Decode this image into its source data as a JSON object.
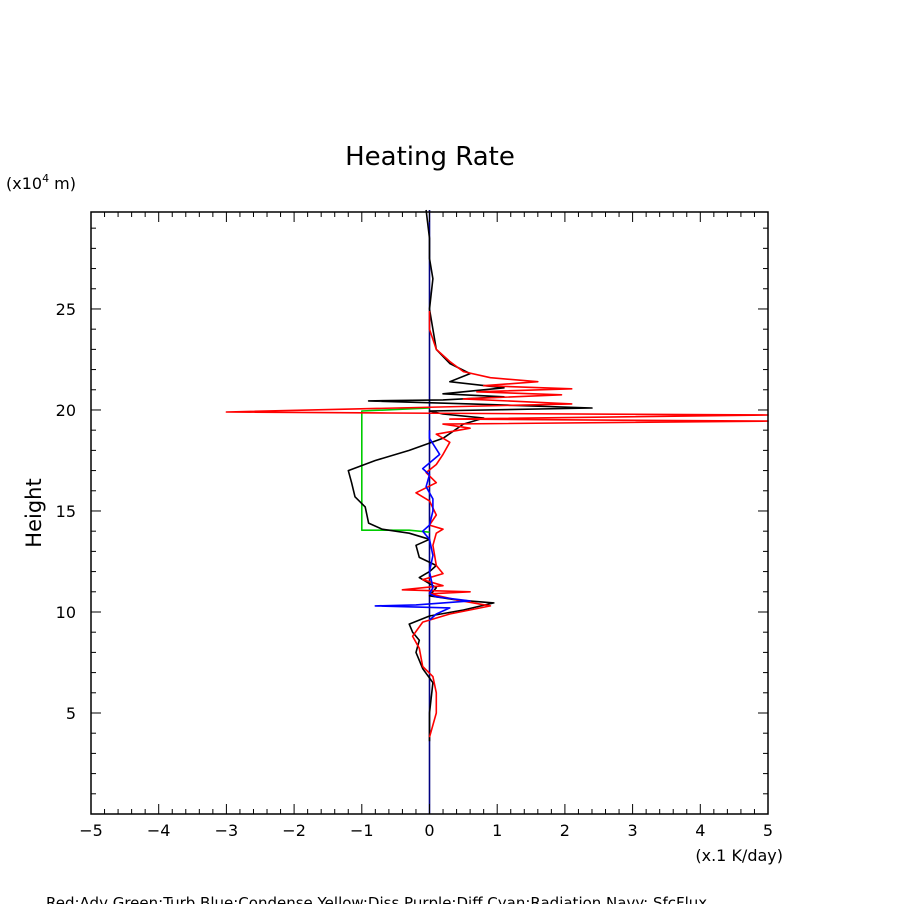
{
  "chart_data": {
    "type": "line",
    "title": "Heating Rate",
    "xlabel": "(x.1 K/day)",
    "ylabel": "Height",
    "yunit_prefix": "(x10",
    "yunit_exp": "4",
    "yunit_suffix": " m)",
    "xlim": [
      -5,
      5
    ],
    "ylim": [
      0,
      29.8
    ],
    "xticks": [
      -5,
      -4,
      -3,
      -2,
      -1,
      0,
      1,
      2,
      3,
      4,
      5
    ],
    "xtick_labels": [
      "−5",
      "−4",
      "−3",
      "−2",
      "−1",
      "0",
      "1",
      "2",
      "3",
      "4",
      "5"
    ],
    "yticks": [
      5,
      10,
      15,
      20,
      25
    ],
    "ytick_labels": [
      "5",
      "10",
      "15",
      "20",
      "25"
    ],
    "legend_text": "Red:Adv  Green:Turb  Blue:Condense  Yellow:Diss  Purple:Diff  Cyan:Radiation  Navy: SfcFlux",
    "series": [
      {
        "name": "Radiation/Total",
        "color": "#000000",
        "points": [
          [
            0.0,
            3.6
          ],
          [
            0.0,
            5.0
          ],
          [
            0.05,
            6.5
          ],
          [
            -0.1,
            7.2
          ],
          [
            -0.2,
            8.0
          ],
          [
            -0.15,
            8.6
          ],
          [
            -0.25,
            9.0
          ],
          [
            -0.3,
            9.4
          ],
          [
            0.0,
            9.8
          ],
          [
            0.5,
            10.1
          ],
          [
            0.95,
            10.45
          ],
          [
            0.4,
            10.6
          ],
          [
            0.0,
            10.8
          ],
          [
            0.1,
            11.2
          ],
          [
            -0.15,
            11.7
          ],
          [
            0.0,
            12.0
          ],
          [
            0.1,
            12.3
          ],
          [
            -0.15,
            12.7
          ],
          [
            -0.2,
            13.3
          ],
          [
            0.0,
            13.6
          ],
          [
            -0.3,
            13.9
          ],
          [
            -0.7,
            14.1
          ],
          [
            -0.9,
            14.4
          ],
          [
            -0.95,
            15.2
          ],
          [
            -1.1,
            15.7
          ],
          [
            -1.15,
            16.4
          ],
          [
            -1.2,
            17.0
          ],
          [
            -0.8,
            17.5
          ],
          [
            -0.3,
            18.0
          ],
          [
            0.2,
            18.6
          ],
          [
            0.5,
            19.3
          ],
          [
            0.8,
            19.6
          ],
          [
            0.2,
            19.8
          ],
          [
            0.0,
            19.95
          ],
          [
            2.4,
            20.1
          ],
          [
            0.6,
            20.3
          ],
          [
            -0.9,
            20.45
          ],
          [
            0.2,
            20.5
          ],
          [
            1.1,
            20.65
          ],
          [
            0.2,
            20.8
          ],
          [
            1.1,
            21.1
          ],
          [
            0.3,
            21.4
          ],
          [
            0.6,
            21.8
          ],
          [
            0.3,
            22.3
          ],
          [
            0.1,
            23.0
          ],
          [
            0.05,
            24.0
          ],
          [
            0.0,
            25.0
          ],
          [
            0.05,
            26.5
          ],
          [
            0.0,
            27.5
          ],
          [
            0.0,
            28.5
          ],
          [
            -0.05,
            29.9
          ]
        ]
      },
      {
        "name": "Adv",
        "color": "#ff0000",
        "points": [
          [
            0.0,
            3.8
          ],
          [
            0.1,
            5.0
          ],
          [
            0.1,
            6.0
          ],
          [
            0.05,
            6.8
          ],
          [
            -0.1,
            7.3
          ],
          [
            -0.15,
            8.2
          ],
          [
            -0.25,
            8.8
          ],
          [
            -0.1,
            9.5
          ],
          [
            0.3,
            9.9
          ],
          [
            0.9,
            10.3
          ],
          [
            0.4,
            10.6
          ],
          [
            0.0,
            10.9
          ],
          [
            0.6,
            11.0
          ],
          [
            -0.4,
            11.1
          ],
          [
            0.2,
            11.3
          ],
          [
            -0.1,
            11.6
          ],
          [
            0.2,
            11.9
          ],
          [
            0.1,
            12.3
          ],
          [
            0.05,
            13.3
          ],
          [
            0.1,
            13.9
          ],
          [
            0.2,
            14.1
          ],
          [
            0.0,
            14.3
          ],
          [
            0.1,
            14.8
          ],
          [
            0.0,
            15.5
          ],
          [
            -0.2,
            15.9
          ],
          [
            0.1,
            16.4
          ],
          [
            -0.05,
            16.9
          ],
          [
            0.1,
            17.3
          ],
          [
            0.2,
            17.8
          ],
          [
            0.3,
            18.4
          ],
          [
            0.1,
            18.8
          ],
          [
            0.6,
            19.1
          ],
          [
            0.2,
            19.3
          ],
          [
            5.0,
            19.45
          ],
          [
            0.3,
            19.55
          ],
          [
            5.0,
            19.75
          ],
          [
            -0.6,
            19.85
          ],
          [
            -3.0,
            19.9
          ],
          [
            2.1,
            20.3
          ],
          [
            0.5,
            20.55
          ],
          [
            1.95,
            20.75
          ],
          [
            0.7,
            20.9
          ],
          [
            2.1,
            21.05
          ],
          [
            0.8,
            21.2
          ],
          [
            1.6,
            21.4
          ],
          [
            0.9,
            21.6
          ],
          [
            0.5,
            21.9
          ],
          [
            0.3,
            22.4
          ],
          [
            0.1,
            23.0
          ],
          [
            0.0,
            24.0
          ],
          [
            0.0,
            24.9
          ]
        ]
      },
      {
        "name": "Condense",
        "color": "#0000ff",
        "points": [
          [
            0.0,
            9.6
          ],
          [
            0.1,
            9.9
          ],
          [
            0.3,
            10.2
          ],
          [
            -0.8,
            10.3
          ],
          [
            -0.2,
            10.35
          ],
          [
            0.6,
            10.55
          ],
          [
            0.1,
            10.75
          ],
          [
            0.0,
            10.9
          ],
          [
            0.05,
            11.2
          ],
          [
            0.0,
            12.0
          ],
          [
            0.05,
            12.8
          ],
          [
            0.0,
            13.6
          ],
          [
            -0.1,
            14.0
          ],
          [
            0.0,
            14.3
          ],
          [
            0.05,
            15.0
          ],
          [
            0.05,
            15.6
          ],
          [
            -0.05,
            16.2
          ],
          [
            0.0,
            16.8
          ],
          [
            -0.1,
            17.1
          ],
          [
            0.15,
            17.8
          ],
          [
            0.0,
            18.6
          ],
          [
            0.0,
            19.0
          ]
        ]
      },
      {
        "name": "Turb",
        "color": "#00cc00",
        "points": [
          [
            0.0,
            20.1
          ],
          [
            -1.0,
            19.95
          ],
          [
            -1.0,
            14.05
          ],
          [
            -0.3,
            14.05
          ],
          [
            0.0,
            13.95
          ]
        ]
      },
      {
        "name": "SfcFlux",
        "color": "#000080",
        "points": [
          [
            0.0,
            0.0
          ],
          [
            0.0,
            29.9
          ]
        ]
      }
    ]
  }
}
